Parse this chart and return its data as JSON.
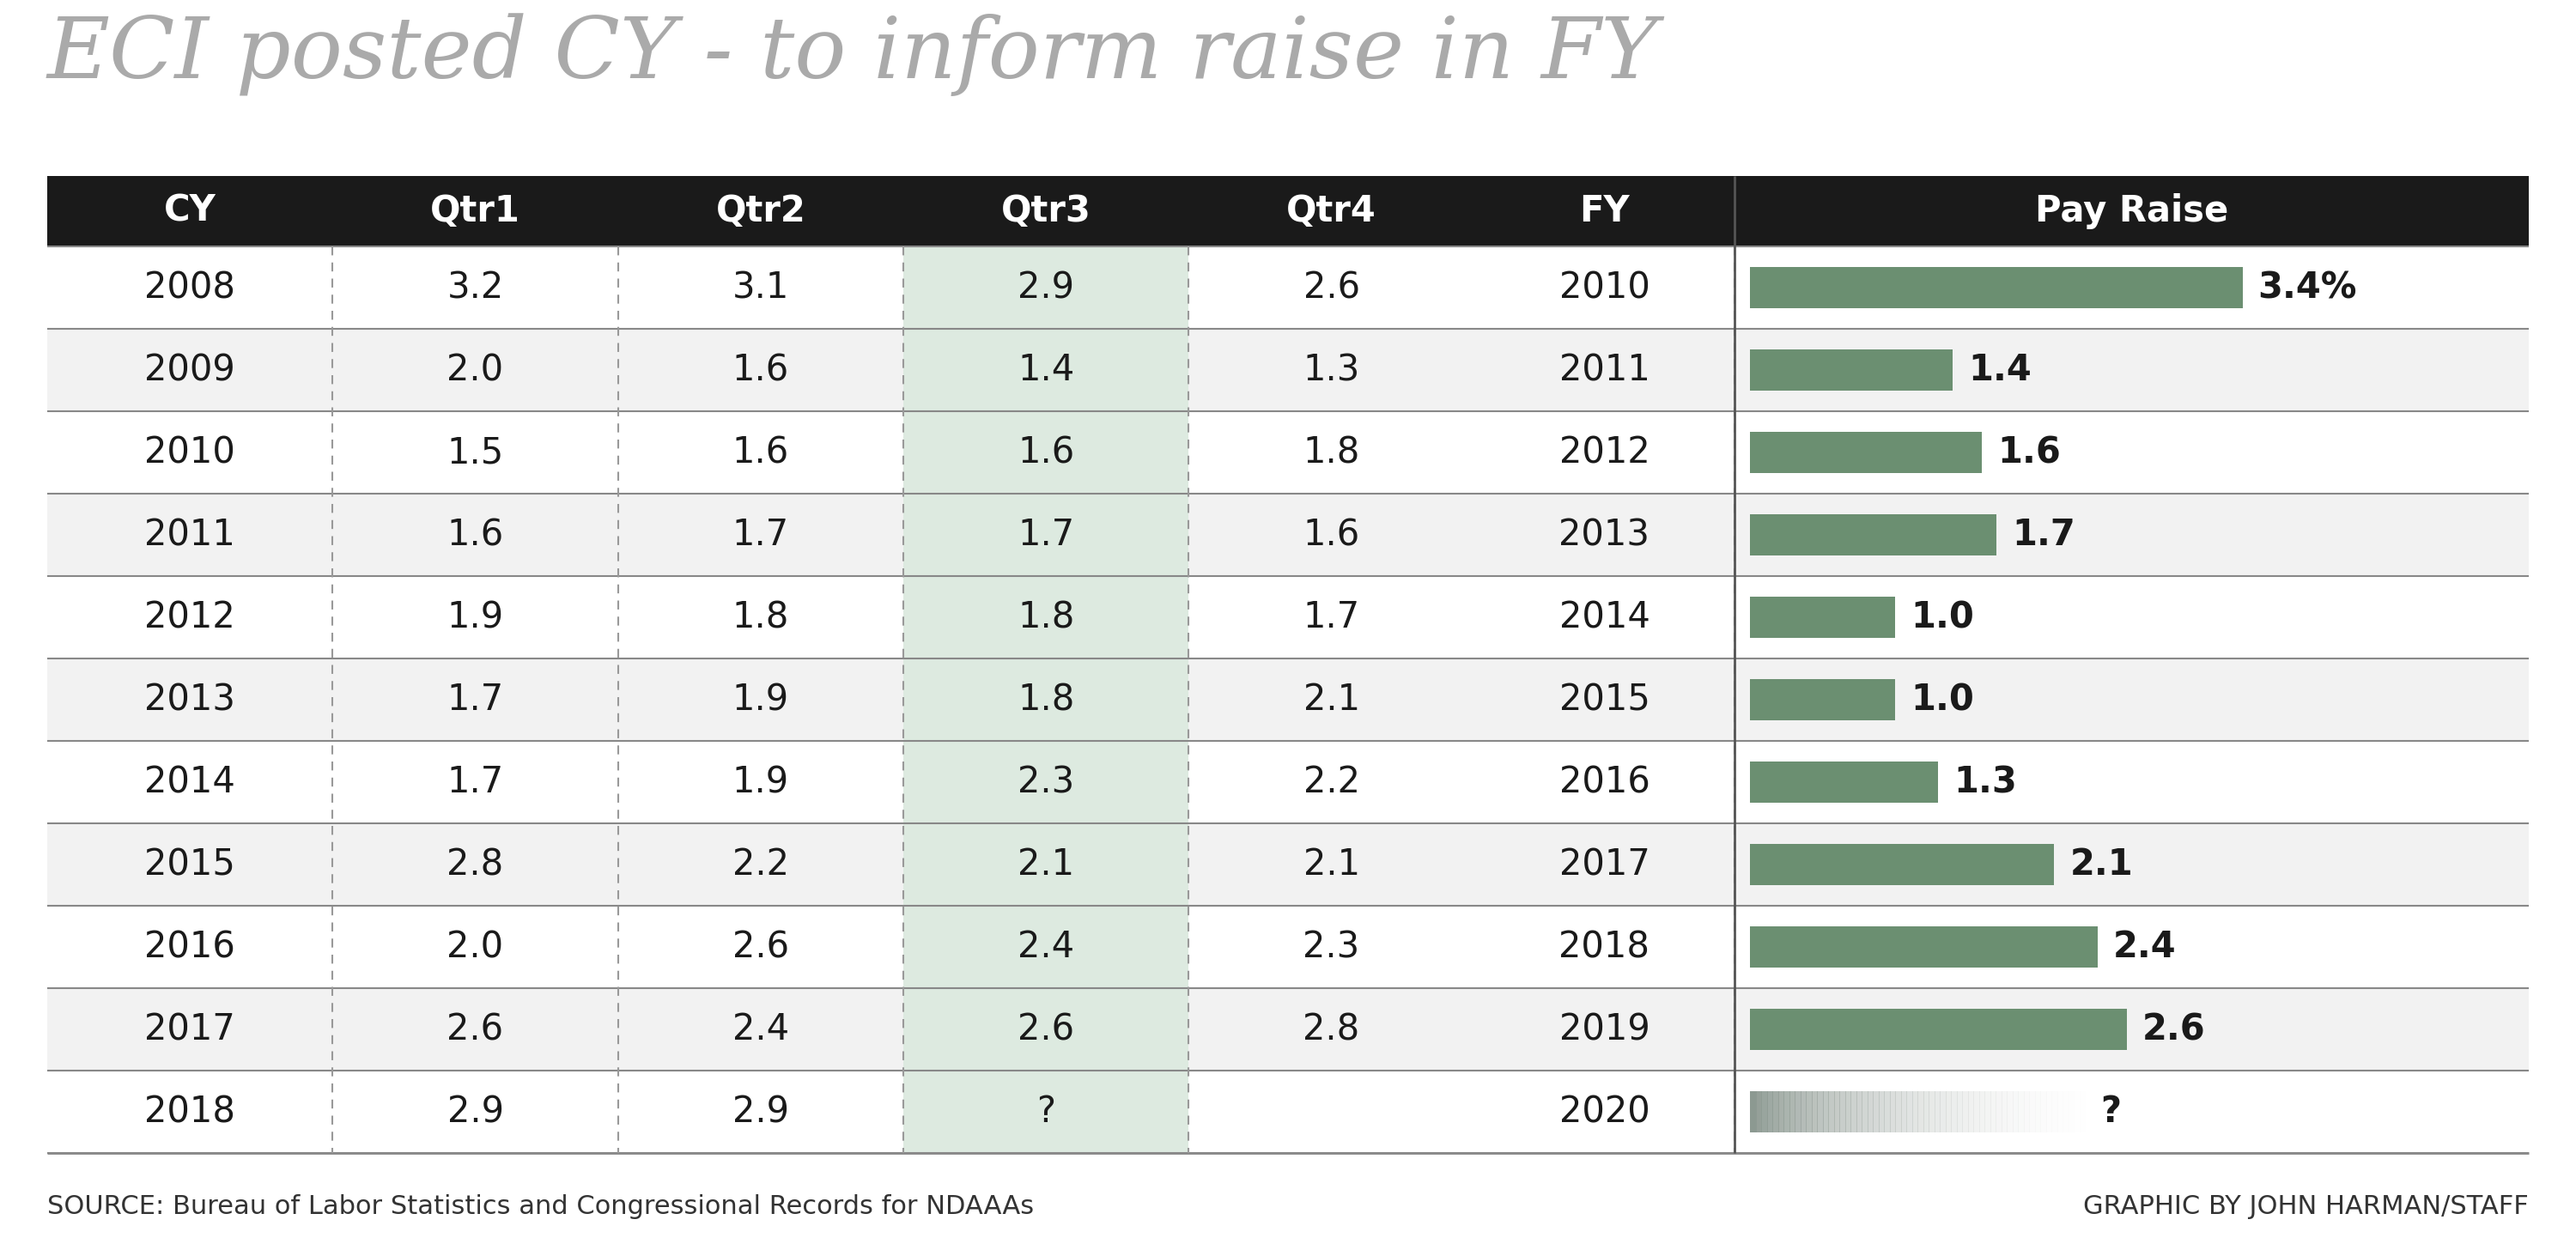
{
  "title": "ECI posted CY - to inform raise in FY",
  "headers": [
    "CY",
    "Qtr1",
    "Qtr2",
    "Qtr3",
    "Qtr4",
    "FY",
    "Pay Raise"
  ],
  "rows": [
    {
      "cy": "2008",
      "qtr1": "3.2",
      "qtr2": "3.1",
      "qtr3": "2.9",
      "qtr4": "2.6",
      "fy": "2010",
      "pay_raise": 3.4,
      "pay_raise_label": "3.4%"
    },
    {
      "cy": "2009",
      "qtr1": "2.0",
      "qtr2": "1.6",
      "qtr3": "1.4",
      "qtr4": "1.3",
      "fy": "2011",
      "pay_raise": 1.4,
      "pay_raise_label": "1.4"
    },
    {
      "cy": "2010",
      "qtr1": "1.5",
      "qtr2": "1.6",
      "qtr3": "1.6",
      "qtr4": "1.8",
      "fy": "2012",
      "pay_raise": 1.6,
      "pay_raise_label": "1.6"
    },
    {
      "cy": "2011",
      "qtr1": "1.6",
      "qtr2": "1.7",
      "qtr3": "1.7",
      "qtr4": "1.6",
      "fy": "2013",
      "pay_raise": 1.7,
      "pay_raise_label": "1.7"
    },
    {
      "cy": "2012",
      "qtr1": "1.9",
      "qtr2": "1.8",
      "qtr3": "1.8",
      "qtr4": "1.7",
      "fy": "2014",
      "pay_raise": 1.0,
      "pay_raise_label": "1.0"
    },
    {
      "cy": "2013",
      "qtr1": "1.7",
      "qtr2": "1.9",
      "qtr3": "1.8",
      "qtr4": "2.1",
      "fy": "2015",
      "pay_raise": 1.0,
      "pay_raise_label": "1.0"
    },
    {
      "cy": "2014",
      "qtr1": "1.7",
      "qtr2": "1.9",
      "qtr3": "2.3",
      "qtr4": "2.2",
      "fy": "2016",
      "pay_raise": 1.3,
      "pay_raise_label": "1.3"
    },
    {
      "cy": "2015",
      "qtr1": "2.8",
      "qtr2": "2.2",
      "qtr3": "2.1",
      "qtr4": "2.1",
      "fy": "2017",
      "pay_raise": 2.1,
      "pay_raise_label": "2.1"
    },
    {
      "cy": "2016",
      "qtr1": "2.0",
      "qtr2": "2.6",
      "qtr3": "2.4",
      "qtr4": "2.3",
      "fy": "2018",
      "pay_raise": 2.4,
      "pay_raise_label": "2.4"
    },
    {
      "cy": "2017",
      "qtr1": "2.6",
      "qtr2": "2.4",
      "qtr3": "2.6",
      "qtr4": "2.8",
      "fy": "2019",
      "pay_raise": 2.6,
      "pay_raise_label": "2.6"
    },
    {
      "cy": "2018",
      "qtr1": "2.9",
      "qtr2": "2.9",
      "qtr3": "?",
      "qtr4": "",
      "fy": "2020",
      "pay_raise": -1,
      "pay_raise_label": "?"
    }
  ],
  "bar_color": "#6b8f71",
  "header_bg": "#1a1a1a",
  "header_fg": "#ffffff",
  "row_bg_white": "#ffffff",
  "row_bg_gray": "#f2f2f2",
  "qtr3_bg": "#ddeae0",
  "border_color": "#888888",
  "dashed_color": "#999999",
  "title_color": "#aaaaaa",
  "text_color": "#1a1a1a",
  "source_text": "SOURCE: Bureau of Labor Statistics and Congressional Records for NDAAAs",
  "credit_text": "GRAPHIC BY JOHN HARMAN/STAFF",
  "max_bar_value": 3.4
}
